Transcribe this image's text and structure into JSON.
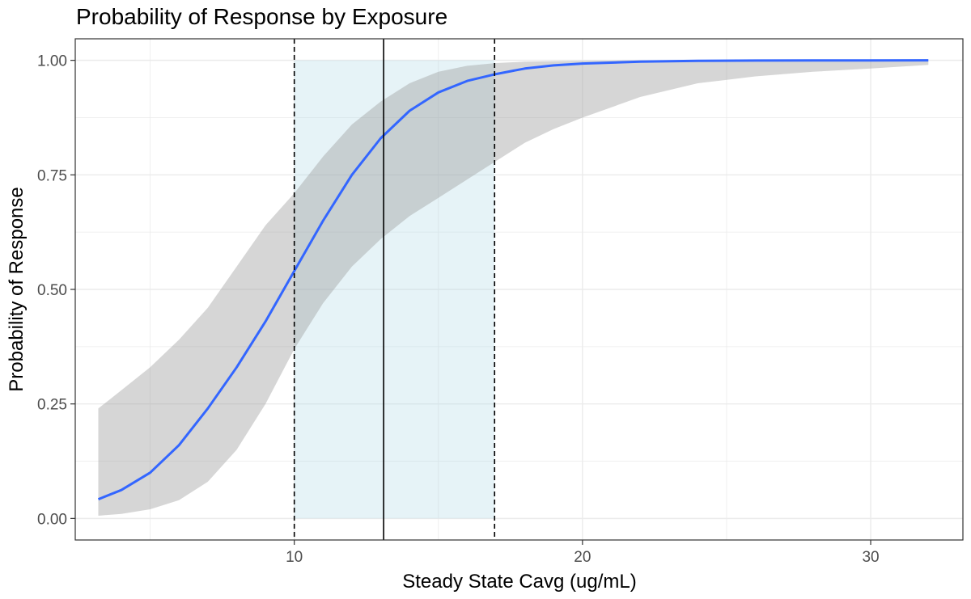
{
  "chart_data": {
    "type": "line",
    "title": "Probability of Response by Exposure",
    "xlabel": "Steady State Cavg (ug/mL)",
    "ylabel": "Probability of Response",
    "xlim": [
      2.4,
      33.2
    ],
    "ylim": [
      -0.047,
      1.047
    ],
    "x_ticks": [
      10,
      20,
      30
    ],
    "x_tick_labels": [
      "10",
      "20",
      "30"
    ],
    "y_ticks": [
      0,
      0.25,
      0.5,
      0.75,
      1.0
    ],
    "y_tick_labels": [
      "0.00",
      "0.25",
      "0.50",
      "0.75",
      "1.00"
    ],
    "grid": true,
    "legend": "none",
    "series": [
      {
        "x": [
          3.2,
          4,
          5,
          6,
          7,
          8,
          9,
          10,
          11,
          12,
          13,
          14,
          15,
          16,
          17,
          18,
          19,
          20,
          22,
          24,
          26,
          28,
          30,
          32
        ],
        "y": [
          0.042,
          0.062,
          0.1,
          0.16,
          0.24,
          0.33,
          0.43,
          0.54,
          0.65,
          0.75,
          0.83,
          0.89,
          0.93,
          0.955,
          0.97,
          0.982,
          0.989,
          0.993,
          0.997,
          0.999,
          0.9995,
          0.9998,
          0.9999,
          1.0
        ],
        "lower": [
          0.006,
          0.01,
          0.02,
          0.04,
          0.08,
          0.15,
          0.25,
          0.37,
          0.47,
          0.55,
          0.61,
          0.66,
          0.7,
          0.74,
          0.78,
          0.82,
          0.85,
          0.875,
          0.92,
          0.95,
          0.965,
          0.975,
          0.982,
          0.99
        ],
        "upper": [
          0.24,
          0.28,
          0.33,
          0.39,
          0.46,
          0.55,
          0.64,
          0.71,
          0.79,
          0.86,
          0.91,
          0.95,
          0.975,
          0.988,
          0.994,
          0.997,
          0.998,
          0.999,
          1.0,
          1.0,
          1.0,
          1.0,
          1.0,
          1.0
        ]
      }
    ],
    "reference_lines": {
      "solid_x": 13.1,
      "dashed_x": [
        10.0,
        16.95
      ]
    },
    "shaded_region": {
      "x": [
        10.0,
        16.95
      ],
      "y": [
        0,
        1
      ]
    },
    "colors": {
      "line": "#3366FF",
      "ribbon": "#999999",
      "shaded": "#ADD8E6",
      "grid": "#ebebeb",
      "panel_border": "#333333",
      "ref_line": "#000000"
    }
  }
}
